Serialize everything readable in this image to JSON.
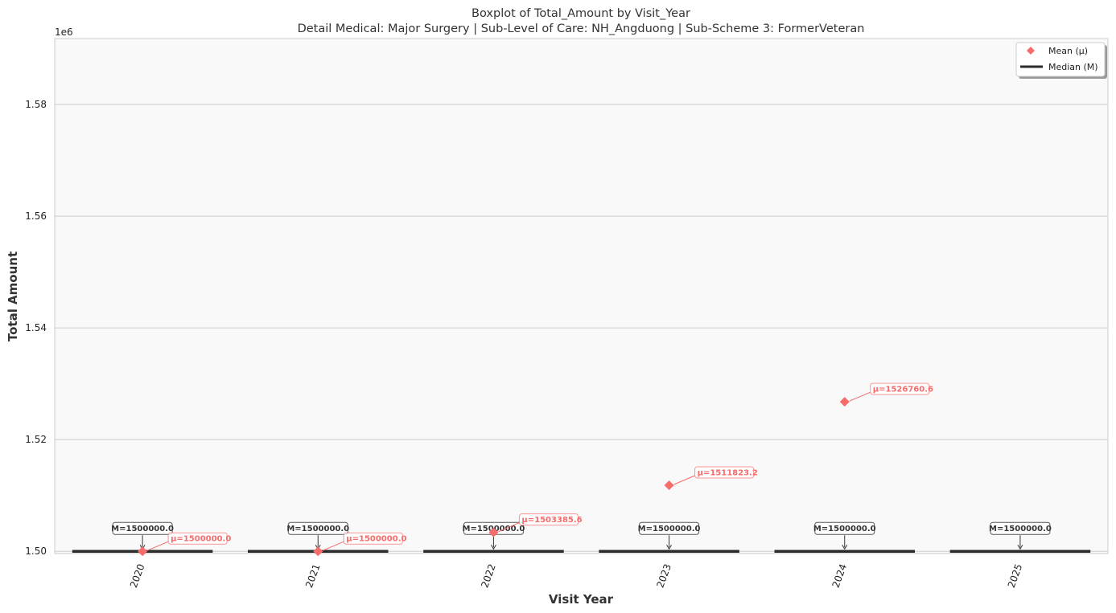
{
  "chart_data": {
    "type": "box",
    "title": "Boxplot of Total_Amount by Visit_Year",
    "subtitle": "Detail Medical: Major Surgery | Sub-Level of Care: NH_Angduong | Sub-Scheme 3: FormerVeteran",
    "xlabel": "Visit Year",
    "ylabel": "Total Amount",
    "y_offset_label": "1e6",
    "ylim": [
      1.4996,
      1.5918
    ],
    "yticks": [
      1.5,
      1.52,
      1.54,
      1.56,
      1.58
    ],
    "ytick_labels": [
      "1.50",
      "1.52",
      "1.54",
      "1.56",
      "1.58"
    ],
    "grid": true,
    "legend_position": "top-right",
    "legend": [
      "Mean (μ)",
      "Median (M)"
    ],
    "categories": [
      "2020",
      "2021",
      "2022",
      "2023",
      "2024",
      "2025"
    ],
    "median": [
      1500000.0,
      1500000.0,
      1500000.0,
      1500000.0,
      1500000.0,
      1500000.0
    ],
    "mean": [
      1500000.0,
      1500000.0,
      1503385.6,
      1511823.2,
      1526760.6,
      null
    ],
    "median_labels": [
      "M=1500000.0",
      "M=1500000.0",
      "M=1500000.0",
      "M=1500000.0",
      "M=1500000.0",
      "M=1500000.0"
    ],
    "mean_labels": [
      "μ=1500000.0",
      "μ=1500000.0",
      "μ=1503385.6",
      "μ=1511823.2",
      "μ=1526760.6",
      ""
    ],
    "colors": {
      "mean": "#f76b6b",
      "median": "#2b2b2b",
      "plot_background": "#f9f9f9",
      "grid": "#cccccc"
    }
  }
}
